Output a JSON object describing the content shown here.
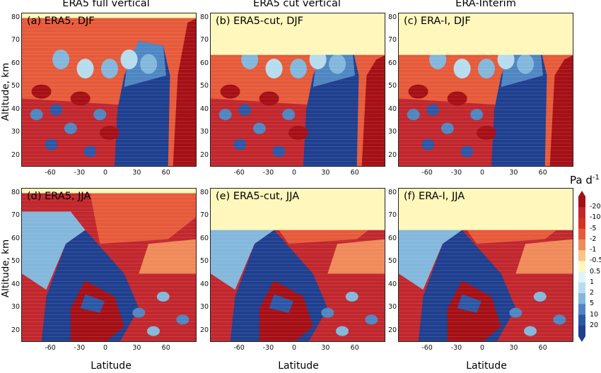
{
  "column_titles": [
    "ERA5 full vertical",
    "ERA5 cut vertical",
    "ERA-Interim"
  ],
  "row_ylabel": "Altitude, km",
  "xlabel": "Latitude",
  "x_ticks": [
    "-60",
    "-30",
    "0",
    "30",
    "60"
  ],
  "y_ticks": [
    "20",
    "30",
    "40",
    "50",
    "60",
    "70",
    "80"
  ],
  "panel_labels": [
    "(a) ERA5, DJF",
    "(b) ERA5-cut, DJF",
    "(c) ERA-I, DJF",
    "(d) ERA5, JJA",
    "(e) ERA5-cut, JJA",
    "(f) ERA-I, JJA"
  ],
  "colorbar": {
    "title": "Pa d",
    "title_exponent": "-1",
    "ticks": [
      "-20",
      "-10",
      "-5",
      "-2",
      "-1",
      "-0.5",
      "0.5",
      "1",
      "2",
      "5",
      "10",
      "20"
    ],
    "colors": [
      "#a50f15",
      "#c1272d",
      "#d7301f",
      "#e65a3a",
      "#f08a5a",
      "#f9c48a",
      "#fff7bc",
      "#e0f3f8",
      "#b7dcee",
      "#83b7dc",
      "#4f86c2",
      "#2b57a6",
      "#1f3f8f"
    ]
  },
  "chart_data": {
    "type": "heatmap",
    "title": "",
    "xlabel": "Latitude",
    "ylabel": "Altitude, km",
    "xlim": [
      -90,
      90
    ],
    "ylim": [
      15,
      82
    ],
    "units": "Pa d-1",
    "panels": [
      {
        "label": "(a) ERA5, DJF",
        "dataset": "ERA5 full vertical",
        "season": "DJF",
        "model_top_km": 80
      },
      {
        "label": "(b) ERA5-cut, DJF",
        "dataset": "ERA5 cut vertical",
        "season": "DJF",
        "model_top_km": 64
      },
      {
        "label": "(c) ERA-I, DJF",
        "dataset": "ERA-Interim",
        "season": "DJF",
        "model_top_km": 64
      },
      {
        "label": "(d) ERA5, JJA",
        "dataset": "ERA5 full vertical",
        "season": "JJA",
        "model_top_km": 80
      },
      {
        "label": "(e) ERA5-cut, JJA",
        "dataset": "ERA5 cut vertical",
        "season": "JJA",
        "model_top_km": 64
      },
      {
        "label": "(f) ERA-I, JJA",
        "dataset": "ERA-Interim",
        "season": "JJA",
        "model_top_km": 64
      }
    ]
  }
}
